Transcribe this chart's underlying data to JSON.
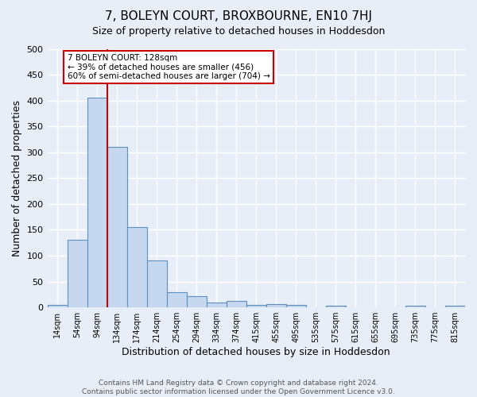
{
  "title": "7, BOLEYN COURT, BROXBOURNE, EN10 7HJ",
  "subtitle": "Size of property relative to detached houses in Hoddesdon",
  "xlabel": "Distribution of detached houses by size in Hoddesdon",
  "ylabel": "Number of detached properties",
  "bar_labels": [
    "14sqm",
    "54sqm",
    "94sqm",
    "134sqm",
    "174sqm",
    "214sqm",
    "254sqm",
    "294sqm",
    "334sqm",
    "374sqm",
    "415sqm",
    "455sqm",
    "495sqm",
    "535sqm",
    "575sqm",
    "615sqm",
    "655sqm",
    "695sqm",
    "735sqm",
    "775sqm",
    "815sqm"
  ],
  "bar_values": [
    5,
    130,
    405,
    310,
    155,
    90,
    30,
    22,
    9,
    13,
    5,
    6,
    5,
    0,
    3,
    0,
    0,
    0,
    3,
    0,
    3
  ],
  "bar_color": "#c5d8f0",
  "bar_edge_color": "#5a8fc0",
  "background_color": "#e8eef8",
  "grid_color": "#ffffff",
  "vline_color": "#cc0000",
  "annotation_text": "7 BOLEYN COURT: 128sqm\n← 39% of detached houses are smaller (456)\n60% of semi-detached houses are larger (704) →",
  "annotation_box_color": "#ffffff",
  "annotation_box_edge_color": "#cc0000",
  "footer_text": "Contains HM Land Registry data © Crown copyright and database right 2024.\nContains public sector information licensed under the Open Government Licence v3.0.",
  "ylim": [
    0,
    500
  ],
  "yticks": [
    0,
    50,
    100,
    150,
    200,
    250,
    300,
    350,
    400,
    450,
    500
  ]
}
